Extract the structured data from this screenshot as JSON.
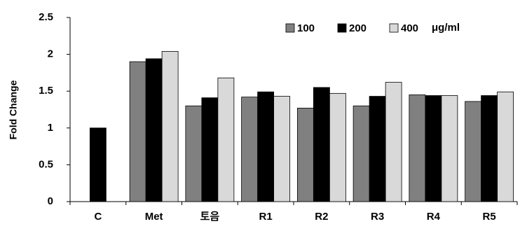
{
  "chart_data": {
    "type": "bar",
    "y_label": "Fold Change",
    "legend_unit": "μg/ml",
    "categories": [
      "C",
      "Met",
      "토음",
      "R1",
      "R2",
      "R3",
      "R4",
      "R5"
    ],
    "series": [
      {
        "name": "100",
        "color": "#808080",
        "values": [
          null,
          1.9,
          1.3,
          1.42,
          1.27,
          1.3,
          1.45,
          1.36
        ]
      },
      {
        "name": "200",
        "color": "#000000",
        "values": [
          1.0,
          1.94,
          1.41,
          1.49,
          1.55,
          1.43,
          1.44,
          1.44
        ]
      },
      {
        "name": "400",
        "color": "#d9d9d9",
        "values": [
          null,
          2.04,
          1.68,
          1.43,
          1.47,
          1.62,
          1.44,
          1.49
        ]
      }
    ],
    "ylim": [
      0,
      2.5
    ],
    "yticks": [
      0,
      0.5,
      1,
      1.5,
      2,
      2.5
    ],
    "grid": false,
    "legend": "top-right"
  }
}
